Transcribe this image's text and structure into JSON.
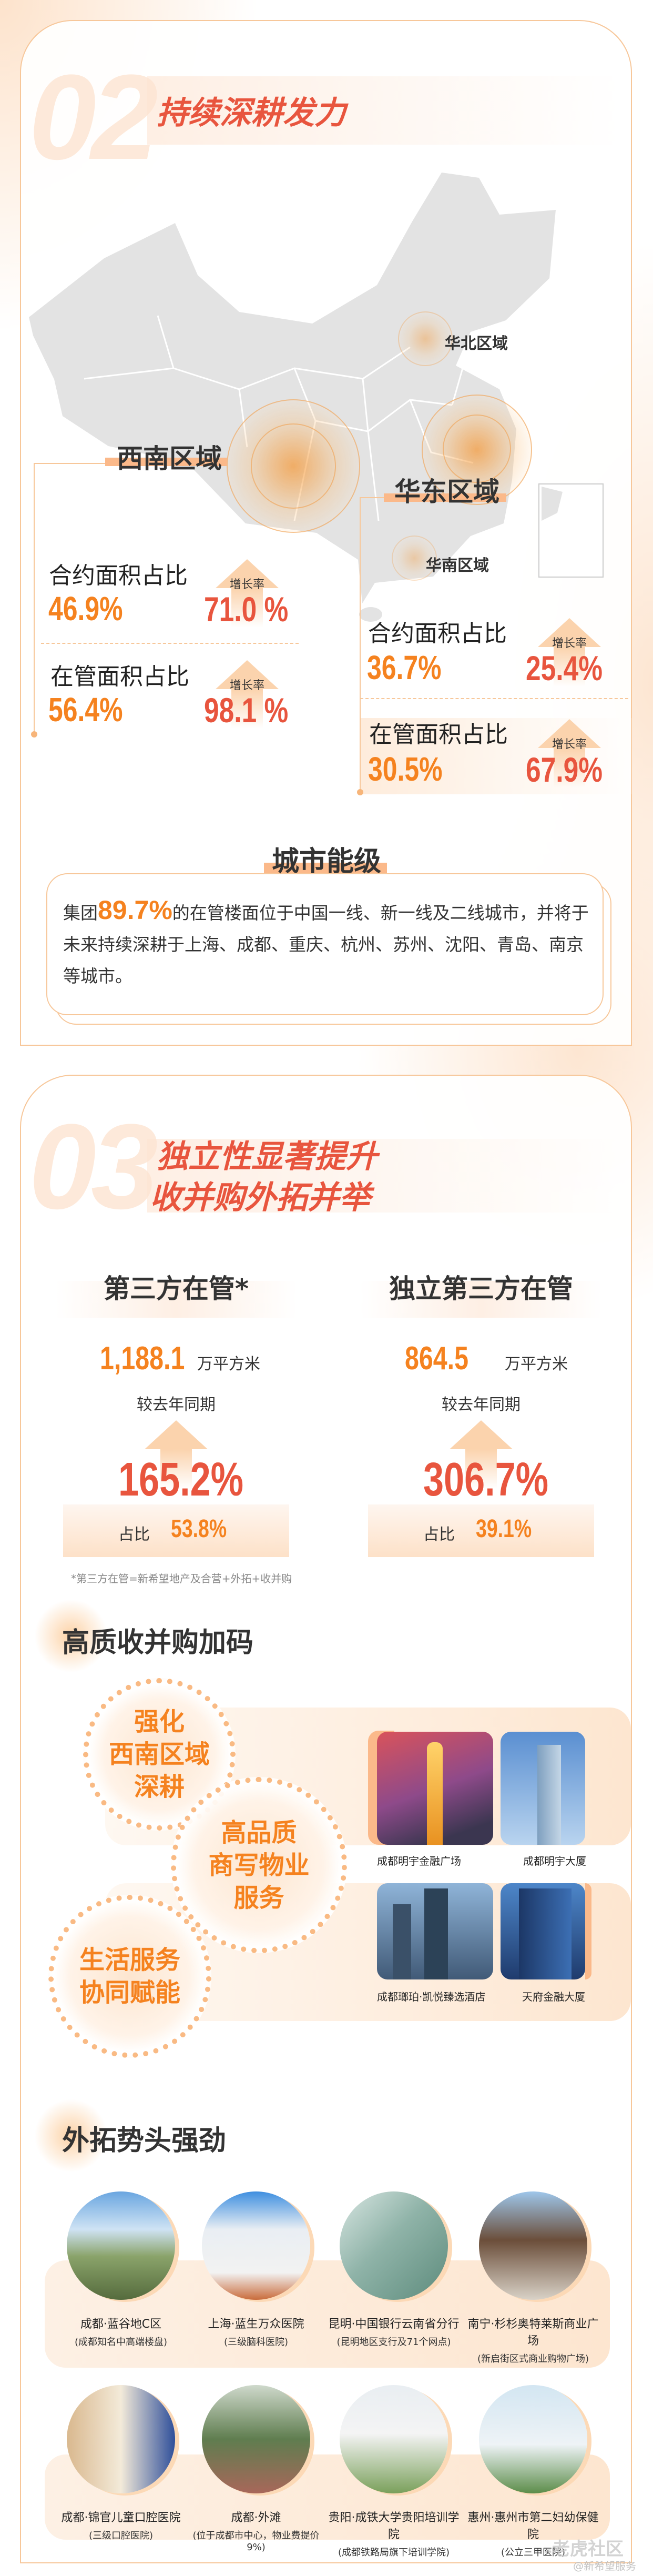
{
  "section2": {
    "number": "02",
    "title": "持续深耕发力",
    "map_regions": {
      "north": "华北区域",
      "south": "华南区域",
      "southwest": "西南区域",
      "east": "华东区域"
    },
    "southwest_stats": {
      "contract_label": "合约面积占比",
      "contract_value": "46.9%",
      "contract_growth_label": "增长率",
      "contract_growth": "71.0 %",
      "managed_label": "在管面积占比",
      "managed_value": "56.4%",
      "managed_growth_label": "增长率",
      "managed_growth": "98.1 %"
    },
    "east_stats": {
      "contract_label": "合约面积占比",
      "contract_value": "36.7%",
      "contract_growth_label": "增长率",
      "contract_growth": "25.4%",
      "managed_label": "在管面积占比",
      "managed_value": "30.5%",
      "managed_growth_label": "增长率",
      "managed_growth": "67.9%"
    },
    "city_tier": {
      "heading": "城市能级",
      "text_prefix": "集团",
      "highlight": "89.7%",
      "text_rest": "的在管楼面位于中国一线、新一线及二线城市，并将于未来持续深耕于上海、成都、重庆、杭州、苏州、沈阳、青岛、南京等城市。"
    }
  },
  "section3": {
    "number": "03",
    "title_line1": "独立性显著提升",
    "title_line2": "收并购外拓并举",
    "columns": [
      {
        "heading": "第三方在管*",
        "value": "1,188.1",
        "unit": "万平方米",
        "compare": "较去年同期",
        "growth": "165.2%",
        "share_label": "占比",
        "share": "53.8%"
      },
      {
        "heading": "独立第三方在管",
        "value": "864.5",
        "unit": "万平方米",
        "compare": "较去年同期",
        "growth": "306.7%",
        "share_label": "占比",
        "share": "39.1%"
      }
    ],
    "footnote": "*第三方在管=新希望地产及合营+外拓+收并购",
    "mna": {
      "heading": "高质收并购加码",
      "bubbles": [
        "强化\n西南区域\n深耕",
        "高品质\n商写物业\n服务",
        "生活服务\n协同赋能"
      ],
      "photos": [
        "成都明宇金融广场",
        "成都明宇大厦",
        "成都瑯珀·凯悦臻选酒店",
        "天府金融大厦"
      ]
    },
    "expansion": {
      "heading": "外拓势头强劲",
      "projects": [
        {
          "name": "成都·蓝谷地C区",
          "note": "(成都知名中高端楼盘)"
        },
        {
          "name": "上海·蓝生万众医院",
          "note": "(三级脑科医院)"
        },
        {
          "name": "昆明·中国银行云南省分行",
          "note": "(昆明地区支行及71个网点)"
        },
        {
          "name": "南宁·杉杉奥特莱斯商业广场",
          "note": "(新启街区式商业购物广场)"
        },
        {
          "name": "成都·锦官儿童口腔医院",
          "note": "(三级口腔医院)"
        },
        {
          "name": "成都·外滩",
          "note": "(位于成都市中心，物业费提价9%)"
        },
        {
          "name": "贵阳·成铁大学贵阳培训学院",
          "note": "(成都铁路局旗下培训学院)"
        },
        {
          "name": "惠州·惠州市第二妇幼保健院",
          "note": "(公立三甲医院)"
        }
      ]
    }
  },
  "watermark": {
    "brand": "老虎社区",
    "account": "@新希望服务"
  },
  "colors": {
    "accent_orange": "#f5821f",
    "accent_red": "#e8553e",
    "border": "#f7c79a",
    "map_grey": "#e3e3e3"
  }
}
